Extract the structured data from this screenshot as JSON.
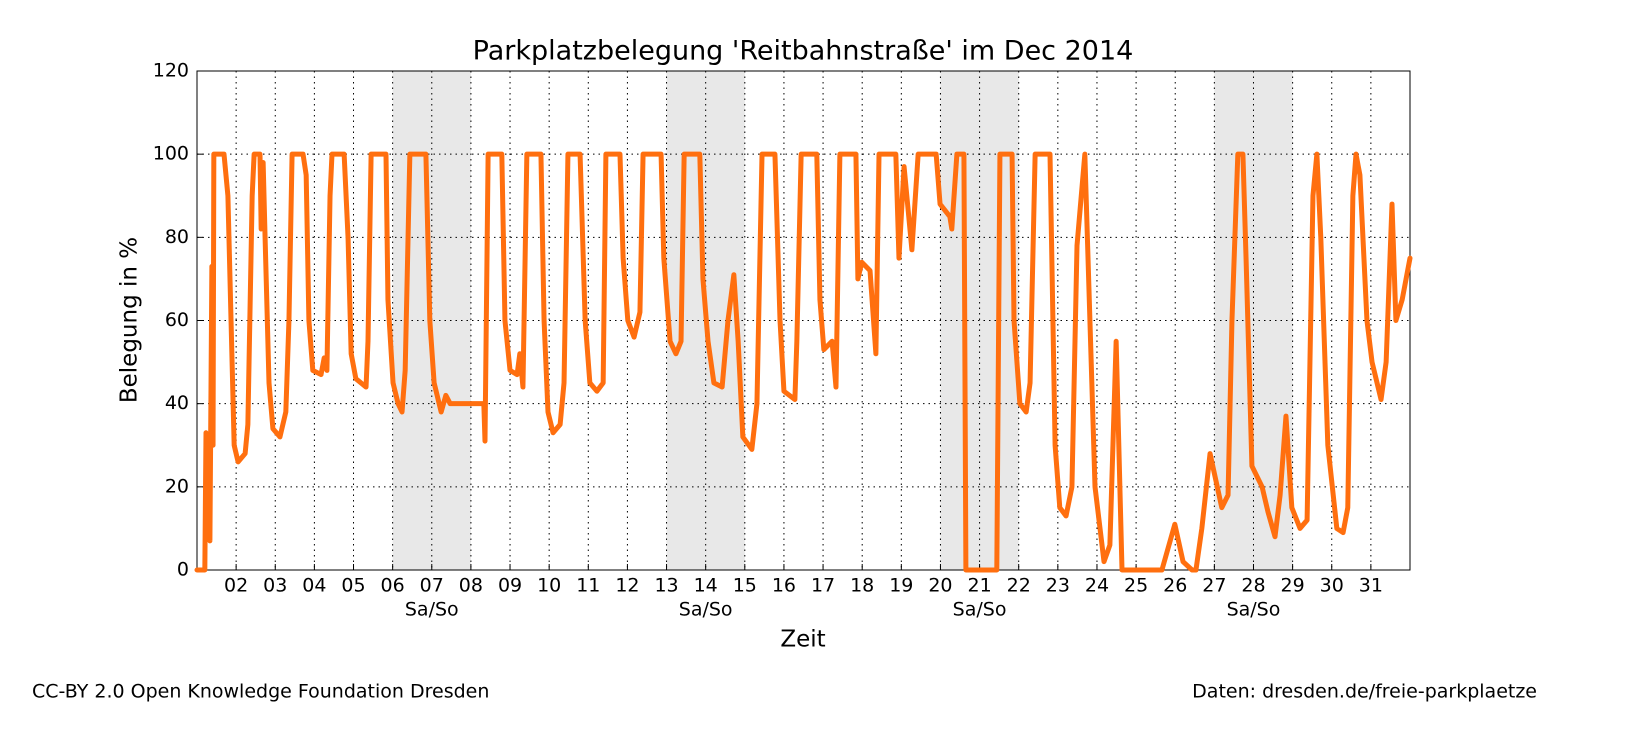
{
  "chart_data": {
    "type": "line",
    "title": "Parkplatzbelegung 'Reitbahnstraße' im Dec 2014",
    "xlabel": "Zeit",
    "ylabel": "Belegung in %",
    "xlim": [
      1,
      32
    ],
    "ylim": [
      0,
      120
    ],
    "yticks": [
      0,
      20,
      40,
      60,
      80,
      100,
      120
    ],
    "xticks": [
      {
        "value": 2,
        "label": "02"
      },
      {
        "value": 3,
        "label": "03"
      },
      {
        "value": 4,
        "label": "04"
      },
      {
        "value": 5,
        "label": "05"
      },
      {
        "value": 6,
        "label": "06"
      },
      {
        "value": 7,
        "label": "07"
      },
      {
        "value": 8,
        "label": "08"
      },
      {
        "value": 9,
        "label": "09"
      },
      {
        "value": 10,
        "label": "10"
      },
      {
        "value": 11,
        "label": "11"
      },
      {
        "value": 12,
        "label": "12"
      },
      {
        "value": 13,
        "label": "13"
      },
      {
        "value": 14,
        "label": "14"
      },
      {
        "value": 15,
        "label": "15"
      },
      {
        "value": 16,
        "label": "16"
      },
      {
        "value": 17,
        "label": "17"
      },
      {
        "value": 18,
        "label": "18"
      },
      {
        "value": 19,
        "label": "19"
      },
      {
        "value": 20,
        "label": "20"
      },
      {
        "value": 21,
        "label": "21"
      },
      {
        "value": 22,
        "label": "22"
      },
      {
        "value": 23,
        "label": "23"
      },
      {
        "value": 24,
        "label": "24"
      },
      {
        "value": 25,
        "label": "25"
      },
      {
        "value": 26,
        "label": "26"
      },
      {
        "value": 27,
        "label": "27"
      },
      {
        "value": 28,
        "label": "28"
      },
      {
        "value": 29,
        "label": "29"
      },
      {
        "value": 30,
        "label": "30"
      },
      {
        "value": 31,
        "label": "31"
      }
    ],
    "grid": true,
    "weekends": [
      {
        "start": 6,
        "end": 8,
        "label": "Sa/So"
      },
      {
        "start": 13,
        "end": 15,
        "label": "Sa/So"
      },
      {
        "start": 20,
        "end": 22,
        "label": "Sa/So"
      },
      {
        "start": 27,
        "end": 29,
        "label": "Sa/So"
      }
    ],
    "x": [
      1.0,
      1.2,
      1.23,
      1.33,
      1.38,
      1.41,
      1.43,
      1.69,
      1.74,
      1.79,
      1.87,
      1.95,
      2.05,
      2.23,
      2.3,
      2.41,
      2.46,
      2.61,
      2.64,
      2.69,
      2.74,
      2.84,
      2.94,
      3.12,
      3.27,
      3.35,
      3.43,
      3.71,
      3.79,
      3.86,
      3.96,
      4.17,
      4.25,
      4.32,
      4.4,
      4.45,
      4.76,
      4.86,
      4.94,
      5.06,
      5.32,
      5.37,
      5.45,
      5.83,
      5.88,
      6.01,
      6.14,
      6.24,
      6.32,
      6.44,
      6.85,
      6.95,
      7.06,
      7.24,
      7.36,
      7.47,
      8.33,
      8.36,
      8.44,
      8.79,
      8.87,
      9.0,
      9.18,
      9.25,
      9.33,
      9.43,
      9.79,
      9.87,
      9.97,
      10.1,
      10.28,
      10.38,
      10.48,
      10.79,
      10.92,
      11.04,
      11.22,
      11.38,
      11.45,
      11.81,
      11.89,
      12.01,
      12.17,
      12.32,
      12.4,
      12.86,
      12.93,
      13.09,
      13.24,
      13.37,
      13.45,
      13.85,
      13.93,
      14.06,
      14.21,
      14.42,
      14.57,
      14.72,
      14.83,
      14.95,
      15.18,
      15.31,
      15.44,
      15.77,
      15.9,
      16.0,
      16.28,
      16.33,
      16.44,
      16.84,
      16.92,
      17.02,
      17.23,
      17.33,
      17.43,
      17.84,
      17.89,
      17.99,
      18.2,
      18.35,
      18.43,
      18.86,
      18.94,
      19.07,
      19.27,
      19.43,
      19.89,
      19.99,
      20.24,
      20.29,
      20.42,
      20.6,
      20.65,
      21.44,
      21.52,
      21.83,
      21.88,
      22.03,
      22.19,
      22.29,
      22.42,
      22.8,
      22.93,
      23.05,
      23.21,
      23.36,
      23.49,
      23.69,
      23.82,
      23.95,
      24.18,
      24.33,
      24.49,
      24.64,
      25.66,
      25.99,
      26.2,
      26.43,
      26.53,
      26.68,
      26.89,
      27.19,
      27.35,
      27.45,
      27.6,
      27.73,
      27.81,
      27.96,
      28.22,
      28.37,
      28.55,
      28.68,
      28.83,
      28.98,
      29.19,
      29.37,
      29.52,
      29.62,
      29.72,
      29.9,
      30.13,
      30.29,
      30.41,
      30.54,
      30.62,
      30.72,
      30.9,
      31.03,
      31.26,
      31.39,
      31.54,
      31.64,
      31.8,
      32.0
    ],
    "series": [
      {
        "color": "#ff6f0f",
        "values": [
          0,
          0,
          33,
          7,
          73,
          30,
          100,
          100,
          95,
          90,
          60,
          30,
          26,
          28,
          35,
          90,
          100,
          100,
          82,
          98,
          80,
          45,
          34,
          32,
          38,
          60,
          100,
          100,
          95,
          60,
          48,
          47,
          51,
          48,
          90,
          100,
          100,
          80,
          52,
          46,
          44,
          55,
          100,
          100,
          65,
          45,
          40,
          38,
          48,
          100,
          100,
          60,
          45,
          38,
          42,
          40,
          40,
          31,
          100,
          100,
          60,
          48,
          47,
          52,
          44,
          100,
          100,
          60,
          38,
          33,
          35,
          45,
          100,
          100,
          60,
          45,
          43,
          45,
          100,
          100,
          75,
          60,
          56,
          62,
          100,
          100,
          75,
          55,
          52,
          55,
          100,
          100,
          70,
          55,
          45,
          44,
          60,
          71,
          55,
          32,
          29,
          40,
          100,
          100,
          60,
          43,
          41,
          55,
          100,
          100,
          65,
          53,
          55,
          44,
          100,
          100,
          70,
          74,
          72,
          52,
          100,
          100,
          75,
          97,
          77,
          100,
          100,
          88,
          85,
          82,
          100,
          100,
          0,
          0,
          100,
          100,
          60,
          40,
          38,
          45,
          100,
          100,
          30,
          15,
          13,
          20,
          78,
          100,
          60,
          20,
          2,
          6,
          55,
          0,
          0,
          11,
          2,
          0,
          0,
          10,
          28,
          15,
          18,
          60,
          100,
          100,
          75,
          25,
          20,
          14,
          8,
          18,
          37,
          15,
          10,
          12,
          90,
          100,
          80,
          30,
          10,
          9,
          15,
          90,
          100,
          95,
          60,
          50,
          41,
          50,
          88,
          60,
          65,
          75
        ]
      }
    ]
  },
  "footer": {
    "left": "CC-BY 2.0 Open Knowledge Foundation Dresden",
    "right": "Daten: dresden.de/freie-parkplaetze"
  }
}
